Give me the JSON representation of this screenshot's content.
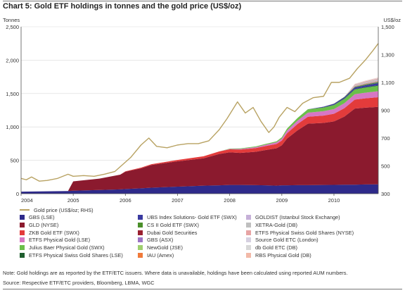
{
  "chart_data": {
    "type": "area",
    "title": "Chart 5: Gold ETF holdings in tonnes and the gold price (US$/oz)",
    "ylabel": "Tonnes",
    "y2label": "US$/oz",
    "ylim": [
      0,
      2500
    ],
    "y2lim": [
      300,
      1500
    ],
    "yticks": [
      0,
      500,
      1000,
      1500,
      2000,
      2500
    ],
    "yticklabels": [
      "0",
      "500",
      "1,000",
      "1,500",
      "2,000",
      "2,500"
    ],
    "y2ticks": [
      300,
      500,
      700,
      900,
      1100,
      1300,
      1500
    ],
    "y2ticklabels": [
      "300",
      "500",
      "700",
      "900",
      "1,100",
      "1,300",
      "1,500"
    ],
    "xlim": [
      2004.0,
      2010.85
    ],
    "xticks": [
      2004,
      2005,
      2006,
      2007,
      2008,
      2009,
      2010
    ],
    "xticklabels": [
      "2004",
      "2005",
      "2006",
      "2007",
      "2008",
      "2009",
      "2010"
    ],
    "grid": true,
    "legend_position": "bottom",
    "x": [
      2004.0,
      2004.5,
      2004.9,
      2005.0,
      2005.5,
      2005.9,
      2006.0,
      2006.3,
      2006.5,
      2007.0,
      2007.5,
      2007.8,
      2008.0,
      2008.2,
      2008.5,
      2008.7,
      2008.9,
      2009.0,
      2009.1,
      2009.3,
      2009.5,
      2009.8,
      2010.0,
      2010.2,
      2010.4,
      2010.6,
      2010.85
    ],
    "series": [
      {
        "name": "GBS (LSE)",
        "color": "#2e2a8a",
        "values": [
          30,
          35,
          40,
          45,
          55,
          65,
          70,
          80,
          90,
          105,
          120,
          125,
          130,
          130,
          128,
          125,
          120,
          125,
          125,
          128,
          128,
          130,
          132,
          135,
          135,
          138,
          140
        ]
      },
      {
        "name": "GLD (NYSE)",
        "color": "#8b1a2e",
        "values": [
          0,
          0,
          0,
          140,
          170,
          220,
          260,
          300,
          340,
          380,
          410,
          470,
          490,
          480,
          500,
          530,
          560,
          600,
          700,
          820,
          920,
          930,
          950,
          1020,
          1140,
          1150,
          1160
        ]
      },
      {
        "name": "ZKB Gold ETF (SWX)",
        "color": "#e33b3b",
        "values": [
          0,
          0,
          0,
          0,
          0,
          0,
          5,
          10,
          12,
          20,
          30,
          38,
          45,
          50,
          55,
          60,
          65,
          70,
          80,
          95,
          105,
          110,
          115,
          125,
          135,
          140,
          145
        ]
      },
      {
        "name": "ETFS Physical Gold (LSE)",
        "color": "#d777c4",
        "values": [
          0,
          0,
          0,
          0,
          0,
          0,
          0,
          0,
          0,
          0,
          0,
          0,
          5,
          10,
          15,
          20,
          25,
          30,
          40,
          50,
          60,
          65,
          70,
          75,
          80,
          85,
          90
        ]
      },
      {
        "name": "Julius Baer Physical Gold (SWX)",
        "color": "#6bbf4a",
        "values": [
          0,
          0,
          0,
          0,
          0,
          0,
          0,
          0,
          0,
          0,
          0,
          0,
          5,
          8,
          10,
          12,
          15,
          20,
          30,
          40,
          50,
          55,
          60,
          65,
          70,
          75,
          80
        ]
      },
      {
        "name": "ETFS Physical Swiss Gold Shares (LSE)",
        "color": "#1f5e2e",
        "values": [
          0,
          0,
          0,
          0,
          0,
          0,
          0,
          0,
          0,
          0,
          0,
          0,
          0,
          0,
          0,
          0,
          0,
          0,
          0,
          0,
          2,
          3,
          4,
          5,
          6,
          7,
          8
        ]
      },
      {
        "name": "UBS Index Solutions- Gold ETF (SWX)",
        "color": "#3a3aa0",
        "values": [
          0,
          0,
          0,
          0,
          0,
          0,
          0,
          0,
          0,
          0,
          0,
          0,
          0,
          0,
          0,
          0,
          0,
          0,
          0,
          0,
          0,
          10,
          15,
          20,
          25,
          30,
          35
        ]
      },
      {
        "name": "CS II Gold ETF (SWX)",
        "color": "#4a8f2a",
        "values": [
          0,
          0,
          0,
          0,
          0,
          0,
          0,
          0,
          0,
          0,
          0,
          0,
          0,
          0,
          0,
          0,
          0,
          0,
          0,
          0,
          0,
          0,
          2,
          5,
          8,
          10,
          12
        ]
      },
      {
        "name": "Dubai Gold Securities",
        "color": "#9a2030",
        "values": [
          0,
          0,
          0,
          0,
          0,
          0,
          0,
          0,
          0,
          0,
          0,
          0,
          0,
          0,
          0,
          0,
          0,
          0,
          0,
          0,
          0,
          0,
          1,
          1,
          2,
          2,
          2
        ]
      },
      {
        "name": "GBS (ASX)",
        "color": "#9b73c5",
        "values": [
          0,
          0,
          0,
          0,
          0,
          0,
          0,
          0,
          0,
          0,
          0,
          0,
          0,
          0,
          0,
          0,
          0,
          0,
          0,
          0,
          0,
          0,
          0,
          0,
          5,
          6,
          8
        ]
      },
      {
        "name": "NewGold (JSE)",
        "color": "#9fcf6e",
        "values": [
          0,
          0,
          0,
          0,
          0,
          0,
          0,
          0,
          0,
          0,
          0,
          0,
          0,
          0,
          0,
          0,
          0,
          0,
          0,
          0,
          0,
          0,
          0,
          0,
          3,
          4,
          5
        ]
      },
      {
        "name": "IAU (Amex)",
        "color": "#f07a3a",
        "values": [
          0,
          0,
          0,
          0,
          0,
          0,
          0,
          0,
          0,
          0,
          0,
          0,
          0,
          0,
          0,
          0,
          0,
          0,
          0,
          0,
          0,
          0,
          0,
          0,
          4,
          5,
          6
        ]
      },
      {
        "name": "GOLDIST (Istanbul Stock Exchange)",
        "color": "#c6b0d8",
        "values": [
          0,
          0,
          0,
          0,
          0,
          0,
          0,
          0,
          0,
          0,
          0,
          0,
          0,
          0,
          0,
          0,
          0,
          0,
          0,
          0,
          0,
          0,
          0,
          0,
          6,
          8,
          10
        ]
      },
      {
        "name": "XETRA-Gold (DB)",
        "color": "#bfbfbf",
        "values": [
          0,
          0,
          0,
          0,
          0,
          0,
          0,
          0,
          0,
          0,
          0,
          0,
          0,
          0,
          0,
          0,
          0,
          0,
          0,
          0,
          0,
          0,
          0,
          0,
          10,
          12,
          14
        ]
      },
      {
        "name": "ETFS Physical Swiss Gold Shares (NYSE)",
        "color": "#e7a4a4",
        "values": [
          0,
          0,
          0,
          0,
          0,
          0,
          0,
          0,
          0,
          0,
          0,
          0,
          0,
          0,
          0,
          0,
          0,
          0,
          0,
          0,
          0,
          0,
          0,
          0,
          8,
          10,
          12
        ]
      },
      {
        "name": "Source Gold ETC (London)",
        "color": "#d6d0e0",
        "values": [
          0,
          0,
          0,
          0,
          0,
          0,
          0,
          0,
          0,
          0,
          0,
          0,
          0,
          0,
          0,
          0,
          0,
          0,
          0,
          0,
          0,
          0,
          0,
          0,
          3,
          4,
          5
        ]
      },
      {
        "name": "db Gold ETC (DB)",
        "color": "#d8d8d8",
        "values": [
          0,
          0,
          0,
          0,
          0,
          0,
          0,
          0,
          0,
          0,
          0,
          0,
          0,
          0,
          0,
          0,
          0,
          0,
          0,
          0,
          0,
          0,
          0,
          0,
          3,
          4,
          5
        ]
      },
      {
        "name": "RBS Physical Gold (DB)",
        "color": "#f2b9a8",
        "values": [
          0,
          0,
          0,
          0,
          0,
          0,
          0,
          0,
          0,
          0,
          0,
          0,
          0,
          0,
          0,
          0,
          0,
          0,
          0,
          0,
          0,
          0,
          0,
          0,
          2,
          3,
          4
        ]
      }
    ],
    "gold_price": {
      "name": "Gold price (US$/oz; RHS)",
      "color": "#b8a262",
      "x": [
        2004.0,
        2004.1,
        2004.2,
        2004.35,
        2004.5,
        2004.7,
        2004.9,
        2005.0,
        2005.2,
        2005.4,
        2005.6,
        2005.8,
        2005.95,
        2006.1,
        2006.3,
        2006.45,
        2006.6,
        2006.8,
        2007.0,
        2007.2,
        2007.4,
        2007.6,
        2007.8,
        2007.95,
        2008.05,
        2008.15,
        2008.3,
        2008.45,
        2008.6,
        2008.75,
        2008.85,
        2008.95,
        2009.1,
        2009.25,
        2009.4,
        2009.6,
        2009.8,
        2009.95,
        2010.1,
        2010.3,
        2010.45,
        2010.6,
        2010.75,
        2010.85
      ],
      "values": [
        410,
        400,
        420,
        390,
        395,
        410,
        440,
        425,
        430,
        425,
        440,
        460,
        510,
        560,
        650,
        700,
        640,
        630,
        650,
        660,
        660,
        680,
        760,
        840,
        900,
        960,
        880,
        920,
        820,
        740,
        780,
        850,
        920,
        890,
        950,
        990,
        1000,
        1100,
        1100,
        1130,
        1200,
        1260,
        1330,
        1380
      ]
    }
  },
  "legend": [
    {
      "label": "Gold price (US$/oz; RHS)",
      "color": "#b8a262",
      "kind": "line"
    },
    {
      "label": "GBS (LSE)",
      "color": "#2e2a8a",
      "kind": "box"
    },
    {
      "label": "UBS Index Solutions- Gold ETF (SWX)",
      "color": "#3a3aa0",
      "kind": "box"
    },
    {
      "label": "GOLDIST (Istanbul Stock Exchange)",
      "color": "#c6b0d8",
      "kind": "box"
    },
    {
      "label": "GLD (NYSE)",
      "color": "#8b1a2e",
      "kind": "box"
    },
    {
      "label": "CS II Gold ETF (SWX)",
      "color": "#4a8f2a",
      "kind": "box"
    },
    {
      "label": "XETRA-Gold (DB)",
      "color": "#bfbfbf",
      "kind": "box"
    },
    {
      "label": "ZKB Gold ETF (SWX)",
      "color": "#e33b3b",
      "kind": "box"
    },
    {
      "label": "Dubai Gold Securities",
      "color": "#9a2030",
      "kind": "box"
    },
    {
      "label": "ETFS Physical Swiss Gold Shares (NYSE)",
      "color": "#e7a4a4",
      "kind": "box"
    },
    {
      "label": "ETFS Physical Gold (LSE)",
      "color": "#d777c4",
      "kind": "box"
    },
    {
      "label": "GBS (ASX)",
      "color": "#9b73c5",
      "kind": "box"
    },
    {
      "label": "Source Gold ETC (London)",
      "color": "#d6d0e0",
      "kind": "box"
    },
    {
      "label": "Julius Baer Physical Gold (SWX)",
      "color": "#6bbf4a",
      "kind": "box"
    },
    {
      "label": "NewGold (JSE)",
      "color": "#9fcf6e",
      "kind": "box"
    },
    {
      "label": "db Gold ETC (DB)",
      "color": "#d8d8d8",
      "kind": "box"
    },
    {
      "label": "ETFS Physical Swiss Gold Shares (LSE)",
      "color": "#1f5e2e",
      "kind": "box"
    },
    {
      "label": "IAU (Amex)",
      "color": "#f07a3a",
      "kind": "box"
    },
    {
      "label": "RBS Physical Gold (DB)",
      "color": "#f2b9a8",
      "kind": "box"
    }
  ],
  "note": "Note: Gold holdings are as reported by the ETF/ETC issuers. Where data is unavailable, holdings have been calculated using reported AUM numbers.",
  "source": "Source: Respective ETF/ETC providers, Bloomberg, LBMA, WGC"
}
